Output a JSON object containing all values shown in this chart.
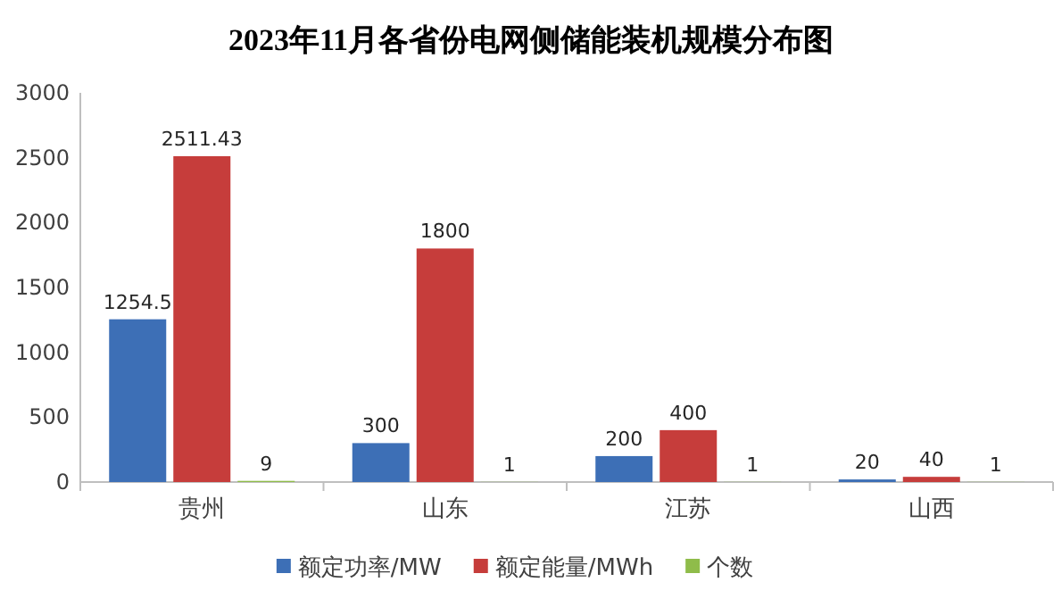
{
  "chart_data": {
    "type": "bar",
    "title": "2023年11月各省份电网侧储能装机规模分布图",
    "categories": [
      "贵州",
      "山东",
      "江苏",
      "山西"
    ],
    "series": [
      {
        "name": "额定功率/MW",
        "color": "#3d6fb6",
        "values": [
          1254.5,
          300,
          200,
          20
        ]
      },
      {
        "name": "额定能量/MWh",
        "color": "#c63d3b",
        "values": [
          2511.43,
          1800,
          400,
          40
        ]
      },
      {
        "name": "个数",
        "color": "#8fbc4a",
        "values": [
          9,
          1,
          1,
          1
        ]
      }
    ],
    "ylim": [
      0,
      3000
    ],
    "yticks": [
      0,
      500,
      1000,
      1500,
      2000,
      2500,
      3000
    ],
    "grid": false,
    "legend": "bottom",
    "data_labels": true
  }
}
